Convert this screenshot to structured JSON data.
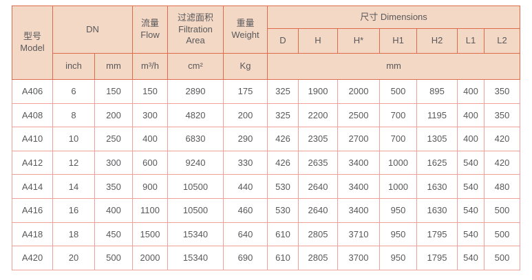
{
  "table": {
    "header": {
      "model": "型号\nModel",
      "dn": "DN",
      "flow": "流量\nFlow",
      "filtration_area": "过滤面积\nFiltration Area",
      "weight": "重量\nWeight",
      "dimensions": "尺寸 Dimensions",
      "dim_cols": [
        "D",
        "H",
        "H*",
        "H1",
        "H2",
        "L1",
        "L2"
      ],
      "units": {
        "inch": "inch",
        "mm": "mm",
        "flow": "m³/h",
        "area": "cm²",
        "weight": "Kg",
        "dim_mm": "mm"
      }
    },
    "rows": [
      [
        "A406",
        "6",
        "150",
        "150",
        "2890",
        "175",
        "325",
        "1900",
        "2000",
        "500",
        "895",
        "400",
        "350"
      ],
      [
        "A408",
        "8",
        "200",
        "300",
        "4820",
        "200",
        "325",
        "2200",
        "2500",
        "700",
        "1195",
        "400",
        "350"
      ],
      [
        "A410",
        "10",
        "250",
        "400",
        "6830",
        "290",
        "426",
        "2305",
        "2700",
        "700",
        "1305",
        "400",
        "420"
      ],
      [
        "A412",
        "12",
        "300",
        "600",
        "9240",
        "330",
        "426",
        "2635",
        "3400",
        "1000",
        "1625",
        "540",
        "420"
      ],
      [
        "A414",
        "14",
        "350",
        "900",
        "10500",
        "440",
        "530",
        "2640",
        "3400",
        "1000",
        "1630",
        "540",
        "480"
      ],
      [
        "A416",
        "16",
        "400",
        "1100",
        "10500",
        "460",
        "530",
        "2640",
        "3400",
        "950",
        "1630",
        "540",
        "500"
      ],
      [
        "A418",
        "18",
        "450",
        "1500",
        "15340",
        "640",
        "610",
        "2805",
        "3710",
        "950",
        "1795",
        "540",
        "500"
      ],
      [
        "A420",
        "20",
        "500",
        "2000",
        "15340",
        "690",
        "610",
        "2805",
        "3700",
        "950",
        "1795",
        "540",
        "500"
      ]
    ]
  },
  "colors": {
    "header_background": "#f4d8c6",
    "header_border": "#dd6a48",
    "data_border": "#efa099",
    "text": "#58585a",
    "page_background": "#ffffff"
  }
}
